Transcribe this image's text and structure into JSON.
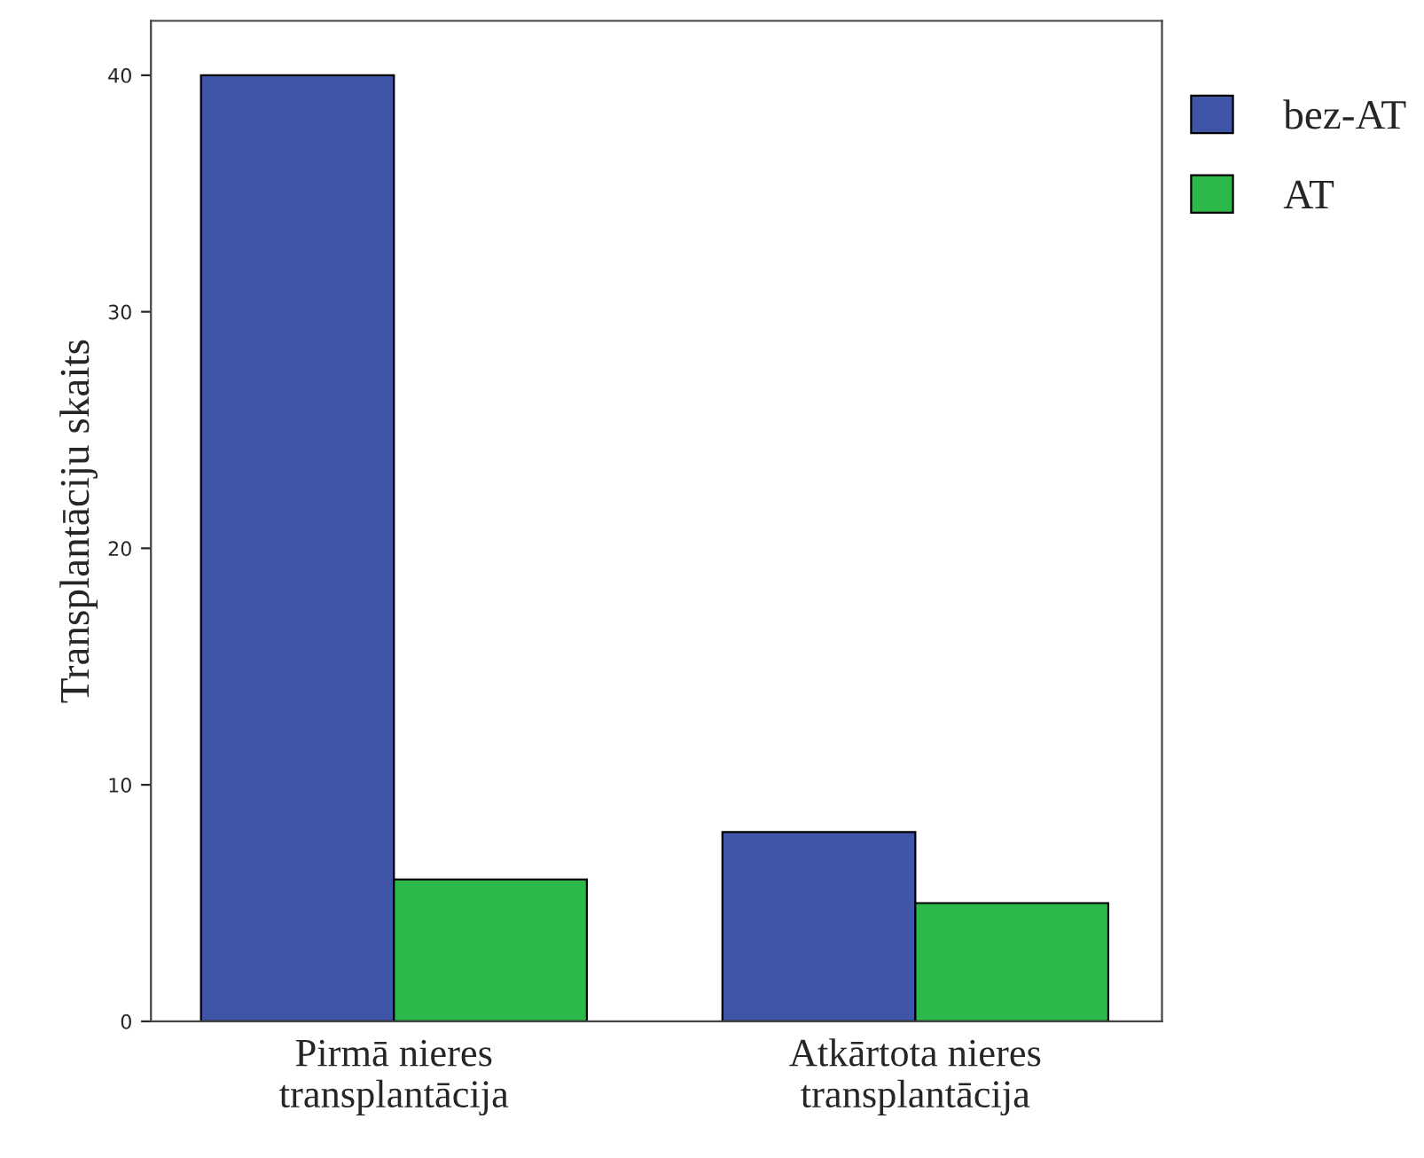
{
  "chart_data": {
    "type": "bar",
    "ylabel": "Transplantāciju skaits",
    "categories": [
      "Pirmā nieres\ntransplantācija",
      "Atkārtota nieres\ntransplantācija"
    ],
    "series": [
      {
        "name": "bez-AT",
        "color": "#3f55a8",
        "values": [
          40,
          8
        ]
      },
      {
        "name": "AT",
        "color": "#2db84a",
        "values": [
          6,
          5
        ]
      }
    ],
    "ylim": [
      0,
      42.3
    ],
    "yticks": [
      0,
      10,
      20,
      30,
      40
    ],
    "grid": false,
    "legend": "top right"
  }
}
